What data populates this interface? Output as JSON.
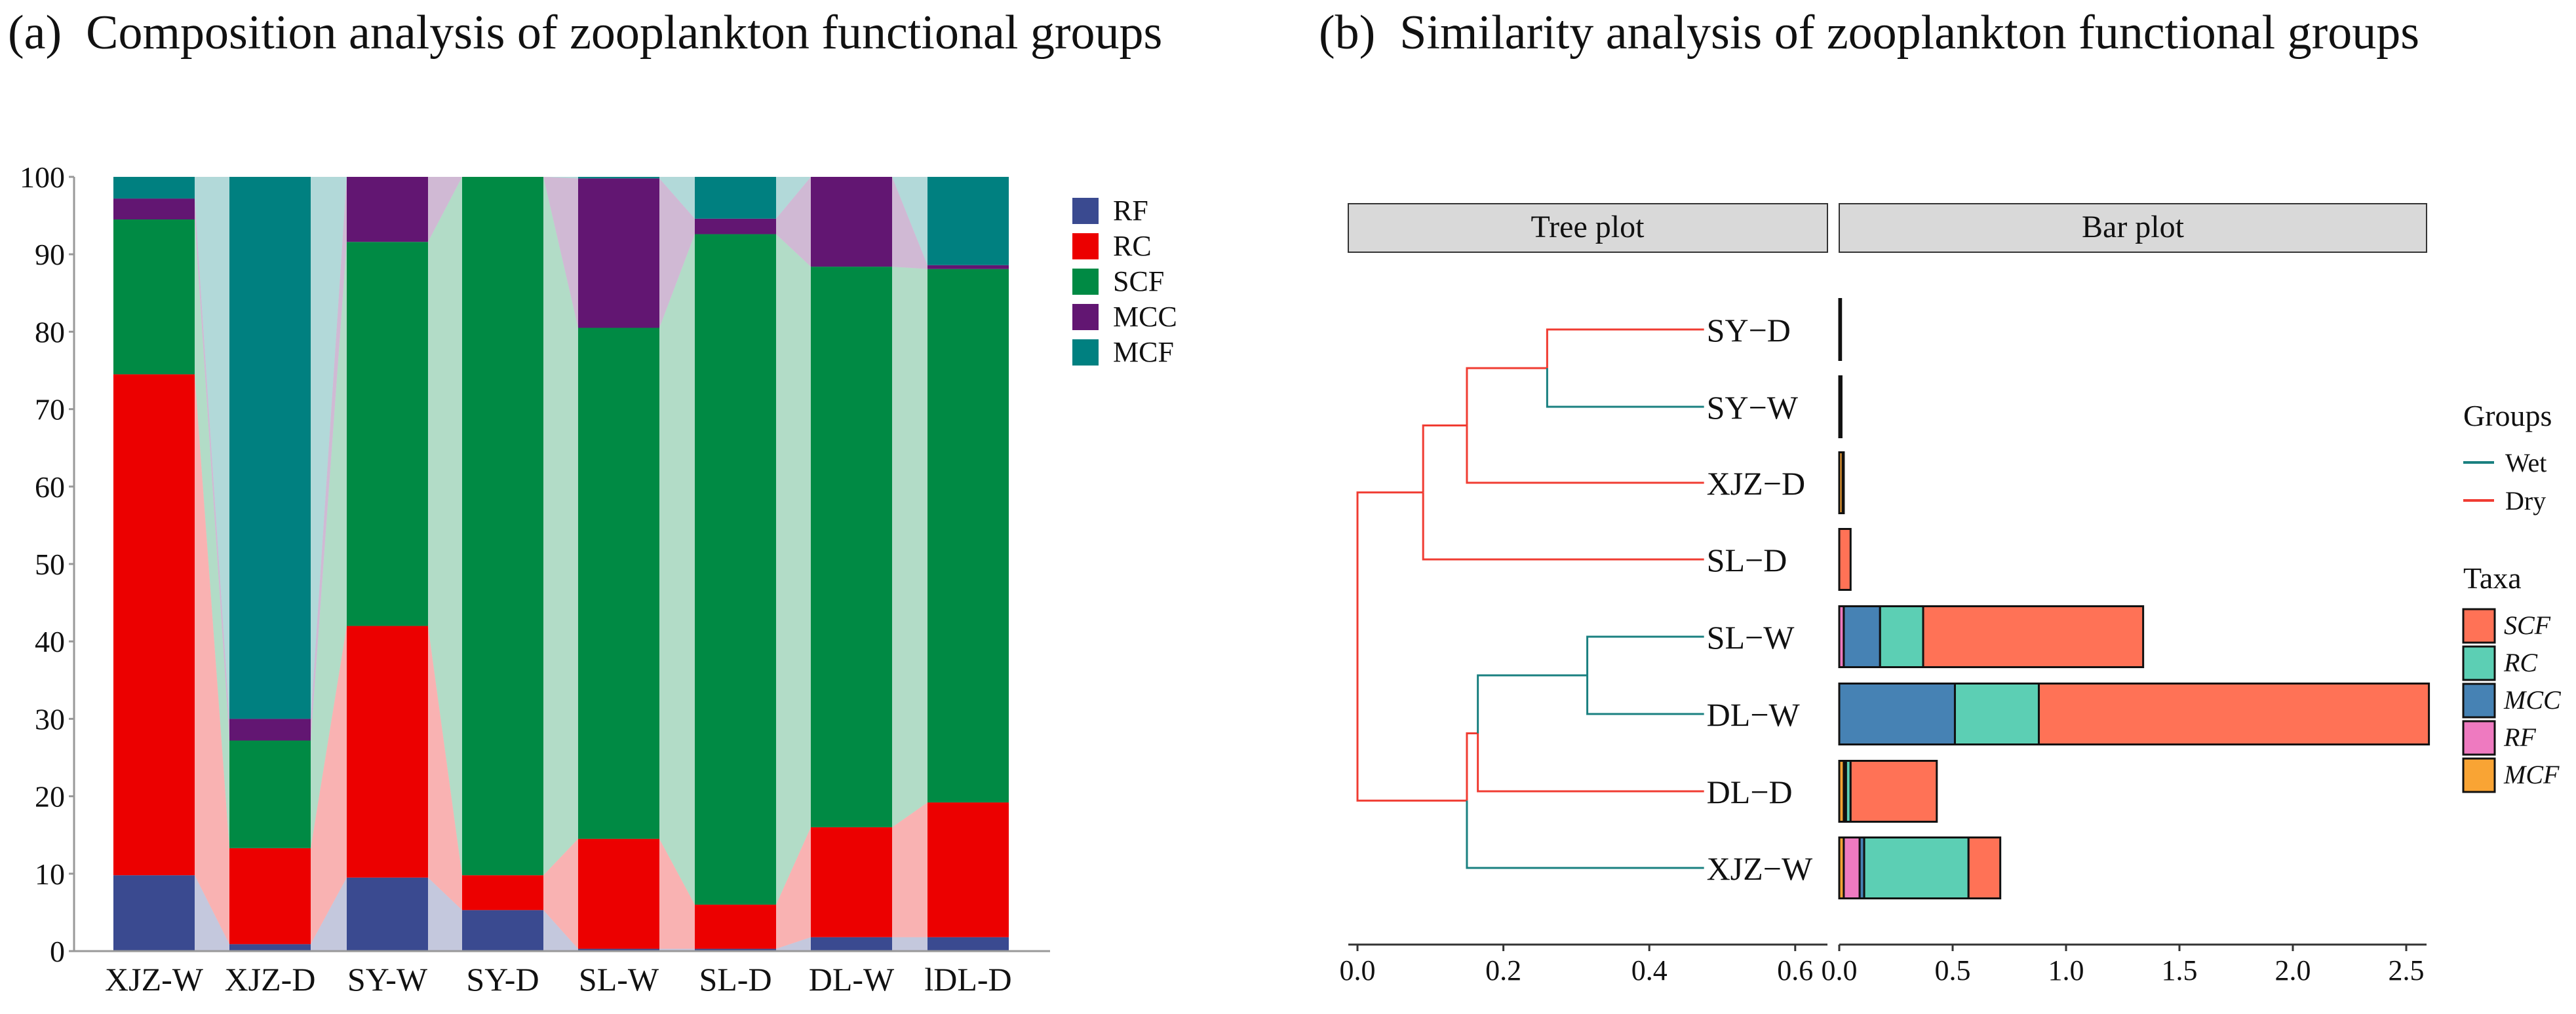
{
  "panel_a_title": "(a)  Composition analysis of zooplankton functional groups",
  "panel_b_title": "(b)  Similarity analysis of zooplankton functional groups",
  "chart_data": [
    {
      "type": "bar",
      "stacked": true,
      "title": "Composition analysis of zooplankton functional groups",
      "categories": [
        "XJZ-W",
        "XJZ-D",
        "SY-W",
        "SY-D",
        "SL-W",
        "SL-D",
        "DL-W",
        "lDL-D"
      ],
      "ylim": [
        0,
        100
      ],
      "yticks": [
        0,
        10,
        20,
        30,
        40,
        50,
        60,
        70,
        80,
        90,
        100
      ],
      "legend_position": "top-right",
      "series": [
        {
          "name": "RF",
          "color": "#3a4a90",
          "values": [
            9.8,
            0.9,
            9.5,
            5.3,
            0.3,
            0.3,
            1.8,
            1.8
          ]
        },
        {
          "name": "RC",
          "color": "#ec0000",
          "values": [
            64.7,
            12.4,
            32.5,
            4.5,
            14.2,
            5.7,
            14.2,
            17.4
          ]
        },
        {
          "name": "SCF",
          "color": "#008a44",
          "values": [
            20.0,
            13.9,
            49.6,
            90.2,
            66.0,
            86.6,
            72.4,
            68.9
          ]
        },
        {
          "name": "MCC",
          "color": "#621672",
          "values": [
            2.7,
            2.8,
            8.4,
            0.0,
            19.3,
            2.0,
            11.6,
            0.5
          ]
        },
        {
          "name": "MCF",
          "color": "#008080",
          "values": [
            2.8,
            70.0,
            0.0,
            0.0,
            0.2,
            5.4,
            0.0,
            11.4
          ]
        }
      ]
    },
    {
      "type": "dendrogram",
      "strip_label": "Tree plot",
      "xlim": [
        0,
        0.65
      ],
      "xticks": [
        "0.0",
        "0.2",
        "0.4",
        "0.6"
      ],
      "leaf_depth": 0.475,
      "leaves": [
        "SY-D",
        "SY-W",
        "XJZ-D",
        "SL-D",
        "SL-W",
        "DL-W",
        "DL-D",
        "XJZ-W"
      ],
      "tree": {
        "h": 0,
        "children": [
          {
            "h": 0.09,
            "color": "dry",
            "children": [
              {
                "h": 0.15,
                "color": "dry",
                "children": [
                  {
                    "h": 0.26,
                    "color": "dry",
                    "children": [
                      {
                        "leaf": "SY-D",
                        "color": "dry"
                      },
                      {
                        "leaf": "SY-W",
                        "color": "wet"
                      }
                    ]
                  },
                  {
                    "leaf": "XJZ-D",
                    "color": "dry"
                  }
                ]
              },
              {
                "leaf": "SL-D",
                "color": "dry"
              }
            ]
          },
          {
            "h": 0.15,
            "color": "dry",
            "children": [
              {
                "h": 0.165,
                "color": "dry",
                "children": [
                  {
                    "h": 0.315,
                    "color": "wet",
                    "children": [
                      {
                        "leaf": "SL-W",
                        "color": "wet"
                      },
                      {
                        "leaf": "DL-W",
                        "color": "wet"
                      }
                    ]
                  },
                  {
                    "leaf": "DL-D",
                    "color": "dry"
                  }
                ]
              },
              {
                "leaf": "XJZ-W",
                "color": "wet"
              }
            ]
          }
        ]
      },
      "groups_legend": {
        "title": "Groups",
        "items": [
          {
            "key": "wet",
            "label": "Wet",
            "color": "#1a8080"
          },
          {
            "key": "dry",
            "label": "Dry",
            "color": "#f03c32"
          }
        ]
      }
    },
    {
      "type": "bar",
      "orientation": "horizontal",
      "stacked": true,
      "strip_label": "Bar plot",
      "xlim": [
        0,
        2.6
      ],
      "xticks": [
        "0.0",
        "0.5",
        "1.0",
        "1.5",
        "2.0",
        "2.5"
      ],
      "categories": [
        "SY-D",
        "SY-W",
        "XJZ-D",
        "SL-D",
        "SL-W",
        "DL-W",
        "DL-D",
        "XJZ-W"
      ],
      "series": [
        {
          "name": "MCF",
          "color": "#f9a434",
          "values": [
            0.002,
            0.003,
            0.015,
            0.0,
            0.0,
            0.0,
            0.02,
            0.02
          ]
        },
        {
          "name": "RF",
          "color": "#ee7ac0",
          "values": [
            0.001,
            0.001,
            0.0,
            0.0,
            0.02,
            0.0,
            0.005,
            0.07
          ]
        },
        {
          "name": "MCC",
          "color": "#4682b4",
          "values": [
            0.001,
            0.002,
            0.0,
            0.0,
            0.16,
            0.51,
            0.005,
            0.02
          ]
        },
        {
          "name": "RC",
          "color": "#5ccfb4",
          "values": [
            0.001,
            0.001,
            0.002,
            0.0,
            0.19,
            0.37,
            0.02,
            0.46
          ]
        },
        {
          "name": "SCF",
          "color": "#ff7256",
          "values": [
            0.001,
            0.001,
            0.003,
            0.05,
            0.97,
            1.72,
            0.38,
            0.14
          ]
        }
      ],
      "taxa_legend": {
        "title": "Taxa",
        "order": [
          "SCF",
          "RC",
          "MCC",
          "RF",
          "MCF"
        ]
      }
    }
  ]
}
